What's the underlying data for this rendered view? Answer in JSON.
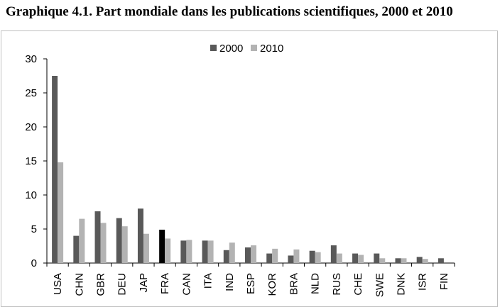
{
  "title": "Graphique 4.1. Part mondiale dans les publications scientifiques, 2000 et 2010",
  "chart_data": {
    "type": "bar",
    "categories": [
      "USA",
      "CHN",
      "GBR",
      "DEU",
      "JAP",
      "FRA",
      "CAN",
      "ITA",
      "IND",
      "ESP",
      "KOR",
      "BRA",
      "NLD",
      "RUS",
      "CHE",
      "SWE",
      "DNK",
      "ISR",
      "FIN"
    ],
    "series": [
      {
        "name": "2000",
        "color": "#595959",
        "values": [
          27.5,
          4.0,
          7.6,
          6.6,
          8.0,
          4.9,
          3.3,
          3.3,
          1.9,
          2.3,
          1.4,
          1.1,
          1.8,
          2.6,
          1.4,
          1.4,
          0.7,
          0.9,
          0.7
        ]
      },
      {
        "name": "2010",
        "color": "#b3b3b3",
        "values": [
          14.8,
          6.5,
          5.9,
          5.4,
          4.3,
          3.6,
          3.4,
          3.3,
          3.0,
          2.6,
          2.1,
          2.0,
          1.6,
          1.4,
          1.2,
          0.7,
          0.7,
          0.6,
          null
        ]
      }
    ],
    "highlight": {
      "category": "FRA",
      "series": "2000",
      "color": "#000000"
    },
    "ylim": [
      0,
      30
    ],
    "yticks": [
      0,
      5,
      10,
      15,
      20,
      25,
      30
    ],
    "xlabel": "",
    "ylabel": "",
    "grid": false,
    "legend_position": "top-center"
  }
}
